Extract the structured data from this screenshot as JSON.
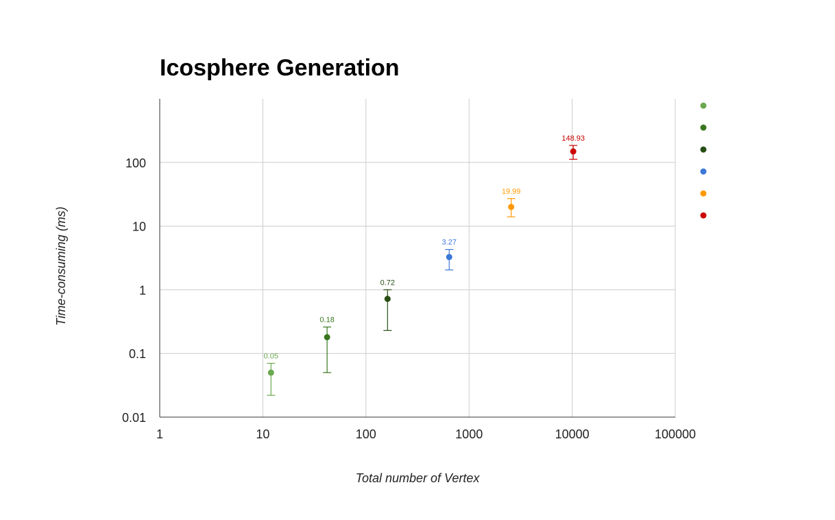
{
  "chart_data": {
    "type": "scatter",
    "title": "Icosphere Generation",
    "xlabel": "Total number of Vertex",
    "ylabel": "Time-consuming (ms)",
    "x_scale": "log",
    "y_scale": "log",
    "xlim": [
      1,
      100000
    ],
    "ylim": [
      0.01,
      1000
    ],
    "x_ticks": [
      "1",
      "10",
      "100",
      "1000",
      "10000",
      "100000"
    ],
    "y_ticks": [
      "0.01",
      "0.1",
      "1",
      "10",
      "100"
    ],
    "grid": true,
    "legend_position": "right",
    "series": [
      {
        "x": 12,
        "y": 0.05,
        "label": "0.05",
        "error_low": 0.022,
        "error_high": 0.07,
        "color": "#6aa84f"
      },
      {
        "x": 42,
        "y": 0.18,
        "label": "0.18",
        "error_low": 0.05,
        "error_high": 0.26,
        "color": "#38761d"
      },
      {
        "x": 162,
        "y": 0.72,
        "label": "0.72",
        "error_low": 0.23,
        "error_high": 1.0,
        "color": "#274e13"
      },
      {
        "x": 642,
        "y": 3.27,
        "label": "3.27",
        "error_low": 2.05,
        "error_high": 4.3,
        "color": "#3c78d8"
      },
      {
        "x": 2562,
        "y": 19.99,
        "label": "19.99",
        "error_low": 14.0,
        "error_high": 27.0,
        "color": "#ff9900"
      },
      {
        "x": 10242,
        "y": 148.93,
        "label": "148.93",
        "error_low": 112.0,
        "error_high": 185.0,
        "color": "#cc0000"
      }
    ]
  }
}
